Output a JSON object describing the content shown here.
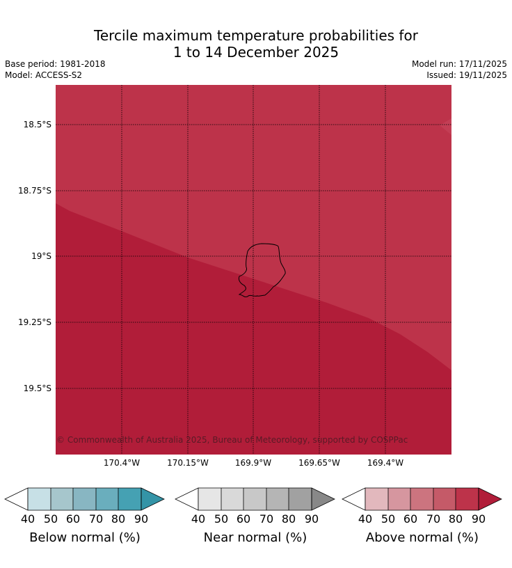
{
  "title_line1": "Tercile maximum temperature probabilities for",
  "title_line2": "1 to 14 December 2025",
  "base_period": "Base period: 1981-2018",
  "model": "Model: ACCESS-S2",
  "model_run": "Model run: 17/11/2025",
  "issued": "Issued: 19/11/2025",
  "copyright": "© Commonwealth of Australia 2025, Bureau of Meteorology, supported by COSPPac",
  "lat_labels": [
    "18.5°S",
    "18.75°S",
    "19°S",
    "19.25°S",
    "19.5°S"
  ],
  "lon_labels": [
    "170.4°W",
    "170.15°W",
    "169.9°W",
    "169.65°W",
    "169.4°W"
  ],
  "colors": {
    "above_80": "#bd334a",
    "above_90": "#b11d39",
    "coast": "#000000"
  },
  "colorbars": [
    {
      "label": "Below normal (%)",
      "ticks": [
        "40",
        "50",
        "60",
        "70",
        "80",
        "90"
      ],
      "colors": [
        "#c7e0e6",
        "#a6c6cc",
        "#88b6c2",
        "#6aaebd",
        "#45a1b3",
        "#3494a7"
      ]
    },
    {
      "label": "Near normal (%)",
      "ticks": [
        "40",
        "50",
        "60",
        "70",
        "80",
        "90"
      ],
      "colors": [
        "#e6e6e6",
        "#d9d9d9",
        "#c8c8c8",
        "#b5b5b5",
        "#a1a1a1",
        "#888888"
      ]
    },
    {
      "label": "Above normal (%)",
      "ticks": [
        "40",
        "50",
        "60",
        "70",
        "80",
        "90"
      ],
      "colors": [
        "#e2b8bd",
        "#d6969f",
        "#cc747f",
        "#c55a68",
        "#bd334a",
        "#b11d39"
      ]
    }
  ]
}
